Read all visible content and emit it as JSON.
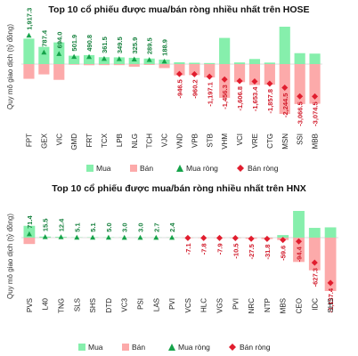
{
  "colors": {
    "buy": "#86efac",
    "sell": "#fcaaaa",
    "net_buy": "#16a34a",
    "net_sell": "#e11d2e",
    "label_pos": "#15803d",
    "label_neg": "#d11a2a"
  },
  "legend": {
    "buy": "Mua",
    "sell": "Bán",
    "net_buy": "Mua ròng",
    "net_sell": "Bán ròng"
  },
  "chart_data": [
    {
      "type": "bar",
      "title": "Top 10 cổ phiếu được mua/bán ròng nhiều nhất trên HOSE",
      "ylabel": "Quy mô giao dịch (tỷ đồng)",
      "xlabel": "",
      "grid": false,
      "legend_position": "bottom-left",
      "categories": [
        "FPT",
        "GEX",
        "VIC",
        "GMD",
        "FRT",
        "TCX",
        "LPB",
        "NLG",
        "TCH",
        "VJC",
        "VND",
        "VPB",
        "STB",
        "VHM",
        "VCI",
        "VRE",
        "CTG",
        "MSN",
        "SSI",
        "MBB"
      ],
      "series": [
        {
          "name": "Mua",
          "values": [
            1700,
            1150,
            1450,
            560,
            600,
            460,
            450,
            420,
            370,
            300,
            120,
            90,
            70,
            1750,
            110,
            340,
            100,
            2500,
            730,
            700
          ]
        },
        {
          "name": "Bán",
          "values": [
            1400,
            980,
            1500,
            60,
            110,
            100,
            100,
            250,
            80,
            380,
            1070,
            1050,
            1270,
            3210,
            1720,
            1990,
            1960,
            4740,
            3800,
            3770
          ]
        },
        {
          "name": "Mua ròng",
          "values": [
            1917.3,
            787.4,
            694.0,
            501.9,
            490.8,
            361.5,
            349.5,
            325.9,
            289.5,
            188.9,
            null,
            null,
            null,
            null,
            null,
            null,
            null,
            null,
            null,
            null
          ]
        },
        {
          "name": "Bán ròng",
          "values": [
            null,
            null,
            null,
            null,
            null,
            null,
            null,
            null,
            null,
            null,
            -946.5,
            -960.2,
            -1197.1,
            -1456.3,
            -1606.8,
            -1653.4,
            -1857.8,
            -2244.5,
            -3066.5,
            -3074.5
          ]
        }
      ],
      "data_labels": [
        "1,917.3",
        "787.4",
        "694.0",
        "501.9",
        "490.8",
        "361.5",
        "349.5",
        "325.9",
        "289.5",
        "188.9",
        "-946.5",
        "-960.2",
        "-1,197.1",
        "-1,456.3",
        "-1,606.8",
        "-1,653.4",
        "-1,857.8",
        "-2,244.5",
        "-3,066.5",
        "-3,074.5"
      ]
    },
    {
      "type": "bar",
      "title": "Top 10 cổ phiếu được mua/bán ròng nhiều nhất trên HNX",
      "ylabel": "Quy mô giao dịch (tỷ đồng)",
      "xlabel": "",
      "grid": false,
      "legend_position": "bottom-left",
      "categories": [
        "PVS",
        "L40",
        "TNG",
        "SLS",
        "SHS",
        "DTD",
        "VC3",
        "PSI",
        "LAS",
        "PVI",
        "VCS",
        "HLC",
        "VGS",
        "PVI",
        "NRC",
        "NTP",
        "MBS",
        "CEO",
        "IDC",
        "SHS"
      ],
      "series": [
        {
          "name": "Mua",
          "values": [
            230,
            20,
            16,
            6,
            8,
            6,
            4,
            4,
            3,
            4,
            2,
            1,
            1,
            3,
            1,
            2,
            50,
            520,
            190,
            200
          ]
        },
        {
          "name": "Bán",
          "values": [
            160,
            5,
            4,
            1,
            3,
            1,
            1,
            1,
            0.3,
            1.6,
            9,
            9,
            9,
            13,
            29,
            34,
            60,
            610,
            820,
            1340
          ]
        },
        {
          "name": "Mua ròng",
          "values": [
            71.4,
            15.5,
            12.4,
            5.1,
            5.1,
            5.0,
            3.0,
            3.0,
            2.7,
            2.4,
            null,
            null,
            null,
            null,
            null,
            null,
            null,
            null,
            null,
            null
          ]
        },
        {
          "name": "Bán ròng",
          "values": [
            null,
            null,
            null,
            null,
            null,
            null,
            null,
            null,
            null,
            null,
            -7.1,
            -7.8,
            -7.9,
            -10.5,
            -27.5,
            -31.8,
            -59.6,
            -94.4,
            -627.3,
            -1137.4
          ]
        }
      ],
      "data_labels": [
        "71.4",
        "15.5",
        "12.4",
        "5.1",
        "5.1",
        "5.0",
        "3.0",
        "3.0",
        "2.7",
        "2.4",
        "-7.1",
        "-7.8",
        "-7.9",
        "-10.5",
        "-27.5",
        "-31.8",
        "-59.6",
        "-94.4",
        "-627.3",
        "-1,137.4"
      ]
    }
  ]
}
